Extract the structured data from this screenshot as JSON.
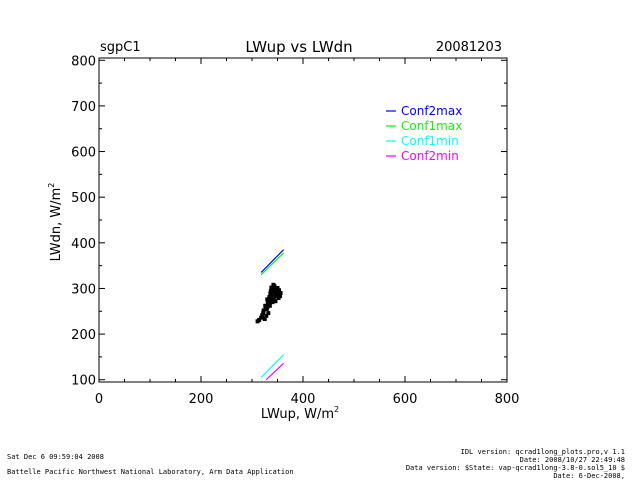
{
  "header": {
    "site": "sgpC1",
    "title": "LWup vs LWdn",
    "date": "20081203"
  },
  "chart_data": {
    "type": "scatter",
    "xlabel": "LWup, W/m",
    "xlabel_sup": "2",
    "ylabel": "LWdn, W/m",
    "ylabel_sup": "2",
    "xlim": [
      0,
      800
    ],
    "ylim": [
      95,
      805
    ],
    "xticks": [
      "0",
      "200",
      "400",
      "600",
      "800"
    ],
    "yticks": [
      "100",
      "200",
      "300",
      "400",
      "500",
      "600",
      "700",
      "800"
    ],
    "grid": false,
    "legend_position": "top-right",
    "lines": [
      {
        "name": "Conf2max",
        "color": "#0000ff",
        "x": [
          318,
          362
        ],
        "y": [
          335,
          385
        ]
      },
      {
        "name": "Conf1max",
        "color": "#00ff00",
        "x": [
          318,
          362
        ],
        "y": [
          330,
          378
        ]
      },
      {
        "name": "Conf1min",
        "color": "#00ffff",
        "x": [
          318,
          362
        ],
        "y": [
          105,
          155
        ]
      },
      {
        "name": "Conf2min",
        "color": "#ff00ff",
        "x": [
          328,
          362
        ],
        "y": [
          100,
          136
        ]
      }
    ],
    "scatter": {
      "color": "#000000",
      "points": [
        [
          311,
          228
        ],
        [
          314,
          231
        ],
        [
          318,
          236
        ],
        [
          320,
          241
        ],
        [
          323,
          252
        ],
        [
          322,
          247
        ],
        [
          327,
          256
        ],
        [
          326,
          262
        ],
        [
          329,
          255
        ],
        [
          331,
          270
        ],
        [
          330,
          276
        ],
        [
          333,
          266
        ],
        [
          334,
          281
        ],
        [
          336,
          289
        ],
        [
          337,
          278
        ],
        [
          339,
          296
        ],
        [
          338,
          302
        ],
        [
          341,
          286
        ],
        [
          342,
          308
        ],
        [
          344,
          292
        ],
        [
          345,
          299
        ],
        [
          343,
          275
        ],
        [
          347,
          283
        ],
        [
          349,
          295
        ],
        [
          350,
          301
        ],
        [
          348,
          288
        ],
        [
          352,
          279
        ],
        [
          354,
          284
        ],
        [
          356,
          290
        ],
        [
          353,
          296
        ],
        [
          335,
          262
        ],
        [
          332,
          246
        ],
        [
          328,
          240
        ],
        [
          325,
          233
        ],
        [
          340,
          270
        ],
        [
          346,
          272
        ],
        [
          351,
          287
        ],
        [
          355,
          283
        ],
        [
          337,
          294
        ],
        [
          341,
          300
        ],
        [
          344,
          305
        ],
        [
          339,
          283
        ],
        [
          333,
          273
        ],
        [
          330,
          259
        ],
        [
          347,
          298
        ],
        [
          350,
          293
        ]
      ]
    }
  },
  "footer": {
    "timestamp": "Sat Dec  6 09:59:04 2008",
    "org": "Battelle Pacific Northwest National Laboratory, Arm Data Application",
    "idl": "IDL version: qcrad1long_plots.pro,v 1.1",
    "idl_date": "Date: 2008/10/27 22:49:48",
    "data_version": "Data version: $State: vap-qcrad1long-3.8-0.sol5_10 $",
    "data_date": "Date: 6-Dec-2008,"
  }
}
